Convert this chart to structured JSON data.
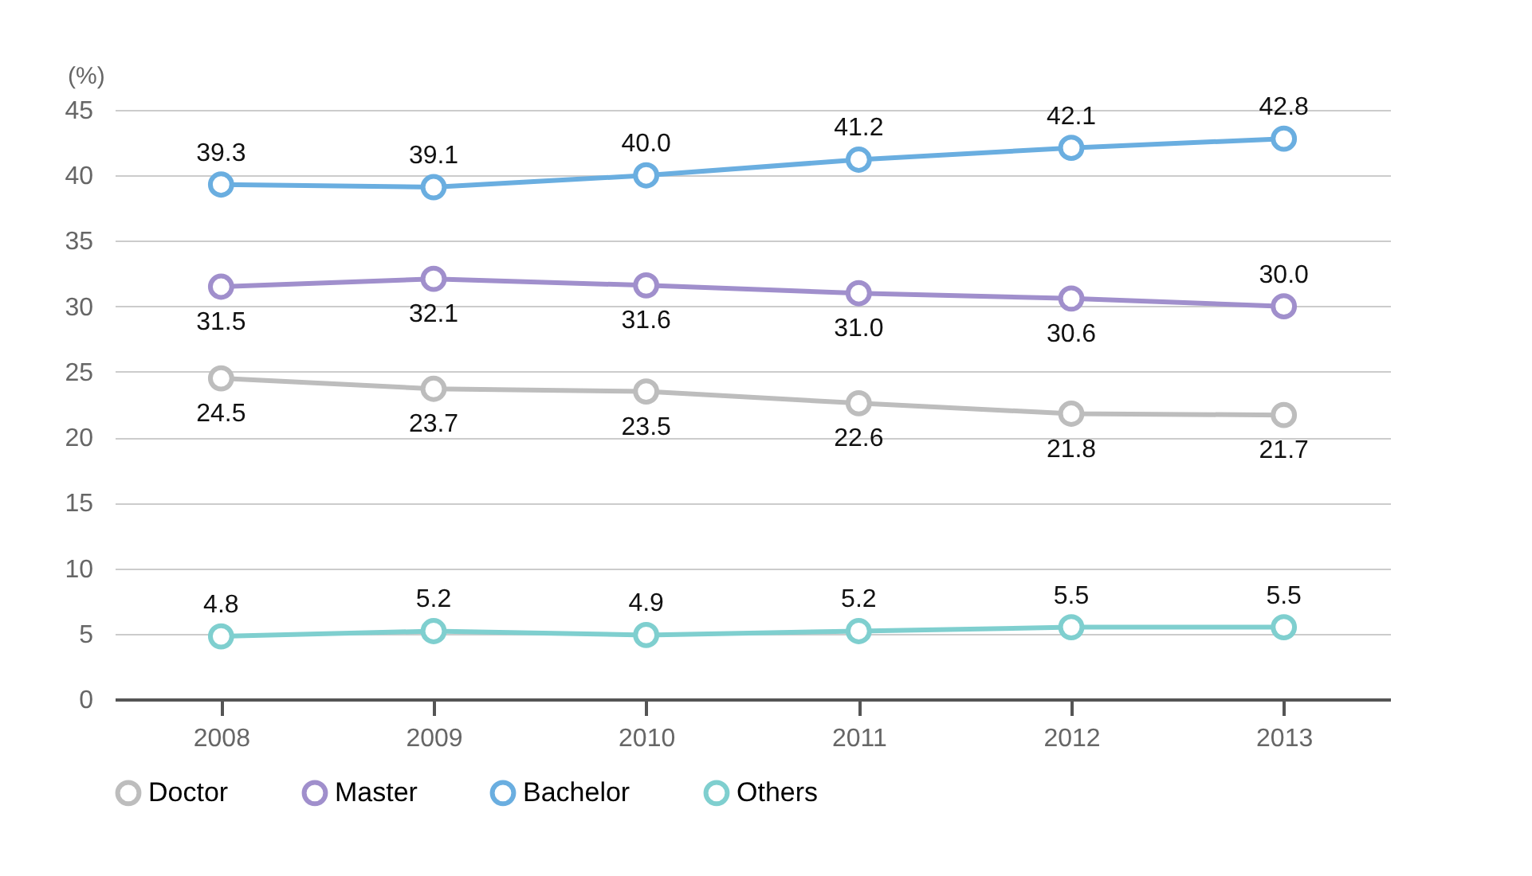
{
  "chart_data": {
    "type": "line",
    "ylabel": "(%)",
    "categories": [
      "2008",
      "2009",
      "2010",
      "2011",
      "2012",
      "2013"
    ],
    "series": [
      {
        "name": "Doctor",
        "color": "#bdbdbd",
        "values": [
          24.5,
          23.7,
          23.5,
          22.6,
          21.8,
          21.7
        ],
        "value_labels": [
          "24.5",
          "23.7",
          "23.5",
          "22.6",
          "21.8",
          "21.7"
        ]
      },
      {
        "name": "Master",
        "color": "#a08fcc",
        "values": [
          31.5,
          32.1,
          31.6,
          31.0,
          30.6,
          30.0
        ],
        "value_labels": [
          "31.5",
          "32.1",
          "31.6",
          "31.0",
          "30.6",
          "30.0"
        ]
      },
      {
        "name": "Bachelor",
        "color": "#6aaee0",
        "values": [
          39.3,
          39.1,
          40.0,
          41.2,
          42.1,
          42.8
        ],
        "value_labels": [
          "39.3",
          "39.1",
          "40.0",
          "41.2",
          "42.1",
          "42.8"
        ]
      },
      {
        "name": "Others",
        "color": "#7fcfcf",
        "values": [
          4.8,
          5.2,
          4.9,
          5.2,
          5.5,
          5.5
        ],
        "value_labels": [
          "4.8",
          "5.2",
          "4.9",
          "5.2",
          "5.5",
          "5.5"
        ]
      }
    ],
    "ylim": [
      0,
      45
    ],
    "yticks": [
      0,
      5,
      10,
      15,
      20,
      25,
      30,
      35,
      40,
      45
    ],
    "grid": "y",
    "legend": "bottom",
    "marker": "circle",
    "line_style": "solid"
  }
}
